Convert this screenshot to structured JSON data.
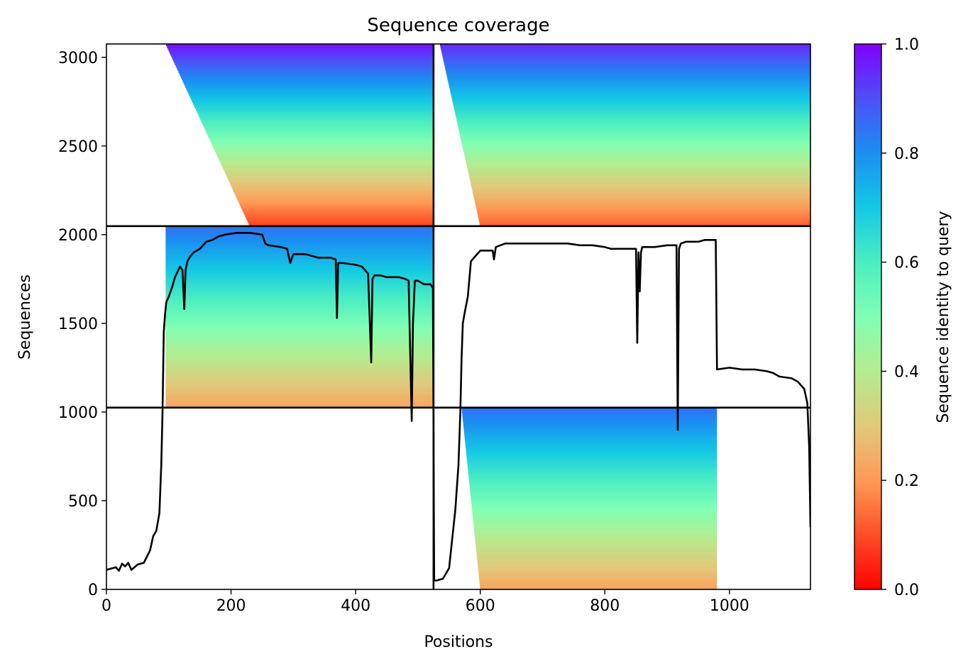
{
  "chart_data": {
    "type": "heatmap",
    "title": "Sequence coverage",
    "xlabel": "Positions",
    "ylabel": "Sequences",
    "xlim": [
      0,
      1130
    ],
    "ylim": [
      0,
      3075
    ],
    "xticks": [
      0,
      200,
      400,
      600,
      800,
      1000
    ],
    "yticks": [
      0,
      500,
      1000,
      1500,
      2000,
      2500,
      3000
    ],
    "xtick_labels": [
      "0",
      "200",
      "400",
      "600",
      "800",
      "1000"
    ],
    "ytick_labels": [
      "0",
      "500",
      "1000",
      "1500",
      "2000",
      "2500",
      "3000"
    ],
    "colormap": "rainbow_r",
    "colorbar": {
      "label": "Sequence identity to query",
      "range": [
        0.0,
        1.0
      ],
      "ticks": [
        0.0,
        0.2,
        0.4,
        0.6,
        0.8,
        1.0
      ],
      "tick_labels": [
        "0.0",
        "0.2",
        "0.4",
        "0.6",
        "0.8",
        "1.0"
      ]
    },
    "chain_boundaries": {
      "x": [
        525
      ],
      "y": [
        1025,
        2048
      ]
    },
    "blocks": [
      {
        "name": "top-left",
        "x": [
          0,
          525
        ],
        "y": [
          2048,
          3075
        ],
        "start_min": 95,
        "start_max": 230,
        "end": 525,
        "id_bottom": 0.08,
        "id_top": 0.98
      },
      {
        "name": "top-right",
        "x": [
          525,
          1130
        ],
        "y": [
          2048,
          3075
        ],
        "start_min": 535,
        "start_max": 600,
        "end": 1130,
        "id_bottom": 0.12,
        "id_top": 0.95
      },
      {
        "name": "middle-left",
        "x": [
          0,
          525
        ],
        "y": [
          1025,
          2048
        ],
        "start_min": 95,
        "start_max": 95,
        "end": 525,
        "id_bottom": 0.22,
        "id_top": 0.85
      },
      {
        "name": "bottom-right",
        "x": [
          525,
          1130
        ],
        "y": [
          0,
          1025
        ],
        "start_min": 570,
        "start_max": 600,
        "end": 980,
        "id_bottom": 0.22,
        "id_top": 0.85
      }
    ],
    "coverage_line": {
      "name": "",
      "x": [
        0,
        5,
        10,
        15,
        20,
        25,
        30,
        35,
        40,
        50,
        60,
        70,
        75,
        80,
        85,
        88,
        90,
        92,
        94,
        96,
        100,
        105,
        110,
        118,
        122,
        125,
        127,
        130,
        135,
        140,
        150,
        160,
        170,
        180,
        190,
        200,
        210,
        230,
        250,
        255,
        260,
        280,
        290,
        295,
        300,
        320,
        340,
        360,
        368,
        370,
        372,
        375,
        380,
        400,
        410,
        420,
        425,
        427,
        430,
        440,
        450,
        460,
        470,
        480,
        485,
        490,
        492,
        495,
        500,
        505,
        510,
        515,
        520,
        524,
        526,
        530,
        540,
        550,
        560,
        565,
        568,
        570,
        572,
        575,
        580,
        585,
        600,
        620,
        622,
        625,
        640,
        660,
        700,
        740,
        760,
        780,
        800,
        810,
        820,
        840,
        850,
        852,
        854,
        856,
        858,
        860,
        870,
        880,
        900,
        910,
        915,
        917,
        919,
        922,
        930,
        940,
        950,
        960,
        975,
        978,
        980,
        1000,
        1020,
        1040,
        1060,
        1070,
        1080,
        1100,
        1110,
        1120,
        1125,
        1128,
        1130
      ],
      "y": [
        110,
        115,
        120,
        125,
        105,
        145,
        130,
        150,
        110,
        140,
        150,
        220,
        300,
        330,
        430,
        700,
        1000,
        1450,
        1550,
        1620,
        1650,
        1700,
        1760,
        1820,
        1800,
        1580,
        1800,
        1850,
        1880,
        1900,
        1920,
        1960,
        1970,
        1990,
        2000,
        2005,
        2010,
        2010,
        2000,
        1950,
        1940,
        1930,
        1920,
        1840,
        1890,
        1890,
        1870,
        1870,
        1860,
        1530,
        1840,
        1840,
        1840,
        1830,
        1820,
        1780,
        1280,
        1750,
        1770,
        1770,
        1760,
        1760,
        1760,
        1750,
        1740,
        950,
        1500,
        1740,
        1740,
        1730,
        1720,
        1720,
        1720,
        1700,
        50,
        50,
        60,
        120,
        450,
        700,
        1000,
        1300,
        1500,
        1560,
        1650,
        1850,
        1910,
        1910,
        1860,
        1930,
        1950,
        1950,
        1950,
        1950,
        1940,
        1940,
        1930,
        1920,
        1920,
        1920,
        1920,
        1390,
        1900,
        1680,
        1900,
        1930,
        1930,
        1930,
        1940,
        1940,
        1940,
        900,
        1920,
        1950,
        1960,
        1960,
        1960,
        1970,
        1970,
        1970,
        1240,
        1250,
        1240,
        1240,
        1230,
        1220,
        1200,
        1190,
        1170,
        1130,
        1050,
        800,
        350
      ]
    }
  }
}
